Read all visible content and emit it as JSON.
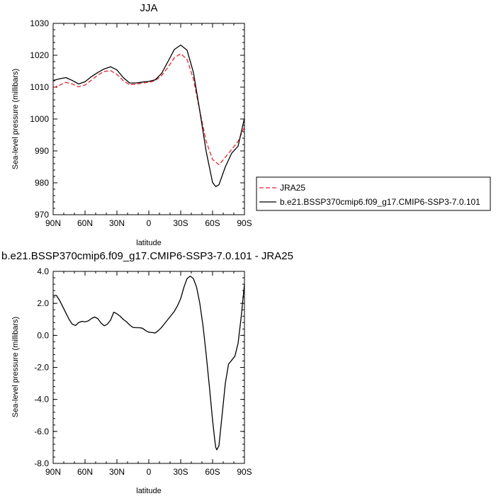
{
  "chart_data": [
    {
      "type": "line",
      "title": "JJA",
      "xlabel": "latitude",
      "ylabel": "Sea-level pressure (millibars)",
      "xlim": [
        -90,
        90
      ],
      "ylim": [
        970,
        1030
      ],
      "x_ticks": [
        -90,
        -60,
        -30,
        0,
        30,
        60,
        90
      ],
      "x_tick_labels": [
        "90N",
        "60N",
        "30N",
        "0",
        "30S",
        "60S",
        "90S"
      ],
      "y_ticks": [
        970,
        980,
        990,
        1000,
        1010,
        1020,
        1030
      ],
      "y_tick_labels": [
        "970",
        "980",
        "990",
        "1000",
        "1010",
        "1020",
        "1030"
      ],
      "legend_position": "right",
      "series": [
        {
          "name": "JRA25",
          "color": "#e8242e",
          "dash": "dashed",
          "x": [
            -90,
            -84,
            -78,
            -72,
            -66,
            -60,
            -54,
            -48,
            -42,
            -36,
            -30,
            -24,
            -18,
            -12,
            -6,
            0,
            6,
            12,
            18,
            24,
            30,
            36,
            42,
            48,
            54,
            60,
            66,
            72,
            78,
            84,
            90
          ],
          "y": [
            1009.8,
            1010.6,
            1011.5,
            1011.0,
            1010.1,
            1010.7,
            1012.2,
            1013.8,
            1014.9,
            1015.2,
            1014.0,
            1012.0,
            1010.8,
            1010.9,
            1011.3,
            1011.5,
            1012.0,
            1013.6,
            1016.2,
            1019.2,
            1020.5,
            1018.7,
            1012.5,
            1002.5,
            993.0,
            987.3,
            985.7,
            988.0,
            990.5,
            993.0,
            997.5
          ]
        },
        {
          "name": "b.e21.BSSP370cmip6.f09_g17.CMIP6-SSP3-7.0.101",
          "color": "#000000",
          "dash": "solid",
          "x": [
            -90,
            -84,
            -78,
            -72,
            -66,
            -60,
            -54,
            -48,
            -42,
            -36,
            -30,
            -24,
            -18,
            -12,
            -6,
            0,
            6,
            12,
            18,
            24,
            30,
            36,
            42,
            48,
            54,
            60,
            63,
            66,
            72,
            78,
            84,
            90
          ],
          "y": [
            1012.1,
            1012.6,
            1013.0,
            1012.1,
            1011.0,
            1011.7,
            1013.3,
            1014.6,
            1015.7,
            1016.4,
            1015.4,
            1013.0,
            1011.3,
            1011.3,
            1011.6,
            1011.8,
            1012.3,
            1014.3,
            1018.0,
            1021.8,
            1023.2,
            1021.6,
            1014.6,
            1002.5,
            989.8,
            980.1,
            978.8,
            979.4,
            985.0,
            989.3,
            991.5,
            1000.3
          ]
        }
      ]
    },
    {
      "type": "line",
      "title": "b.e21.BSSP370cmip6.f09_g17.CMIP6-SSP3-7.0.101 - JRA25",
      "xlabel": "latitude",
      "ylabel": "Sea-level pressure (millibars)",
      "xlim": [
        -90,
        90
      ],
      "ylim": [
        -8,
        4
      ],
      "x_ticks": [
        -90,
        -60,
        -30,
        0,
        30,
        60,
        90
      ],
      "x_tick_labels": [
        "90N",
        "60N",
        "30N",
        "0",
        "30S",
        "60S",
        "90S"
      ],
      "y_ticks": [
        -8,
        -6,
        -4,
        -2,
        0,
        2,
        4
      ],
      "y_tick_labels": [
        "-8.0",
        "-6.0",
        "-4.0",
        "-2.0",
        "0.0",
        "2.0",
        "4.0"
      ],
      "series": [
        {
          "color": "#000000",
          "dash": "solid",
          "x": [
            -90,
            -87,
            -84,
            -81,
            -78,
            -75,
            -72,
            -69,
            -66,
            -63,
            -60,
            -57,
            -54,
            -51,
            -48,
            -45,
            -42,
            -39,
            -36,
            -33,
            -30,
            -27,
            -24,
            -21,
            -18,
            -15,
            -12,
            -9,
            -6,
            -3,
            0,
            3,
            6,
            9,
            12,
            15,
            18,
            21,
            24,
            27,
            30,
            33,
            36,
            39,
            42,
            45,
            48,
            51,
            54,
            57,
            60,
            62,
            63,
            64,
            66,
            68,
            70,
            72,
            75,
            78,
            81,
            84,
            87,
            90
          ],
          "y": [
            2.5,
            2.5,
            2.2,
            1.8,
            1.4,
            1.0,
            0.7,
            0.62,
            0.8,
            0.88,
            0.85,
            0.9,
            1.05,
            1.15,
            1.05,
            0.78,
            0.6,
            0.7,
            0.95,
            1.45,
            1.35,
            1.2,
            1.0,
            0.85,
            0.65,
            0.5,
            0.48,
            0.48,
            0.45,
            0.3,
            0.2,
            0.18,
            0.15,
            0.3,
            0.5,
            0.75,
            1.0,
            1.25,
            1.5,
            1.85,
            2.3,
            3.0,
            3.55,
            3.7,
            3.55,
            3.0,
            2.0,
            0.6,
            -1.2,
            -3.2,
            -5.3,
            -6.5,
            -7.0,
            -7.15,
            -6.9,
            -5.6,
            -4.3,
            -3.0,
            -1.8,
            -1.55,
            -1.3,
            -0.5,
            1.2,
            3.2
          ]
        }
      ]
    }
  ]
}
